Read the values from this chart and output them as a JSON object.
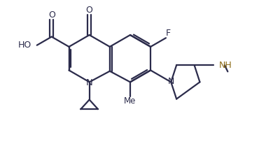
{
  "bg_color": "#ffffff",
  "line_color": "#2b2b4b",
  "nh_color": "#8b6914",
  "bond_lw": 1.6,
  "figsize": [
    3.9,
    2.06
  ],
  "dpi": 100,
  "xlim": [
    0,
    9.5
  ],
  "ylim": [
    0,
    5.0
  ]
}
